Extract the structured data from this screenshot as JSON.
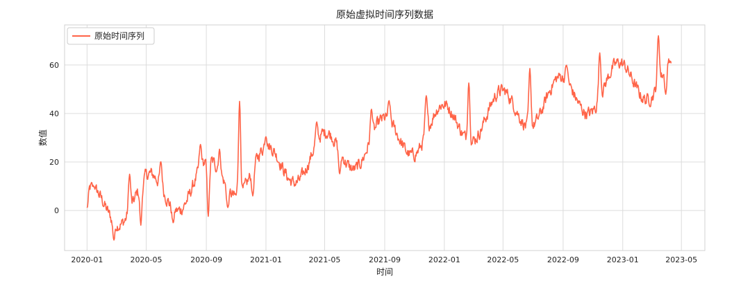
{
  "chart_data": {
    "type": "line",
    "title": "原始虚拟时间序列数据",
    "xlabel": "时间",
    "ylabel": "数值",
    "x_range": [
      "2019-11-16",
      "2023-06-18"
    ],
    "ylim": [
      -16.5,
      76.5
    ],
    "grid": true,
    "legend_position": "top-left",
    "x_ticks": [
      "2020-01",
      "2020-05",
      "2020-09",
      "2021-01",
      "2021-05",
      "2021-09",
      "2022-01",
      "2022-05",
      "2022-09",
      "2023-01",
      "2023-05"
    ],
    "y_ticks": [
      0,
      20,
      40,
      60
    ],
    "series": [
      {
        "name": "原始时间序列",
        "color": "#ff6347",
        "x_start": "2020-01-01",
        "x_end": "2023-04-10",
        "x_step": "1 day",
        "trend": {
          "start": 0,
          "end": 57
        },
        "seasonal_amplitude": 9,
        "seasonal_period_days": 120,
        "key_points": [
          {
            "x": "2020-01-01",
            "y": 1
          },
          {
            "x": "2020-01-15",
            "y": 10
          },
          {
            "x": "2020-02-25",
            "y": -12
          },
          {
            "x": "2020-03-28",
            "y": 15
          },
          {
            "x": "2020-04-20",
            "y": -6
          },
          {
            "x": "2020-05-31",
            "y": 20
          },
          {
            "x": "2020-06-25",
            "y": -5
          },
          {
            "x": "2020-08-20",
            "y": 27
          },
          {
            "x": "2020-09-05",
            "y": -2
          },
          {
            "x": "2020-09-28",
            "y": 25
          },
          {
            "x": "2020-10-15",
            "y": 1
          },
          {
            "x": "2020-11-08",
            "y": 45
          },
          {
            "x": "2020-12-05",
            "y": 6
          },
          {
            "x": "2021-01-01",
            "y": 31
          },
          {
            "x": "2021-04-15",
            "y": 36
          },
          {
            "x": "2021-06-01",
            "y": 15
          },
          {
            "x": "2021-08-05",
            "y": 42
          },
          {
            "x": "2021-09-10",
            "y": 45
          },
          {
            "x": "2021-11-25",
            "y": 47
          },
          {
            "x": "2022-02-20",
            "y": 53
          },
          {
            "x": "2022-06-25",
            "y": 58
          },
          {
            "x": "2022-09-08",
            "y": 60
          },
          {
            "x": "2022-11-15",
            "y": 65
          },
          {
            "x": "2023-03-15",
            "y": 72
          },
          {
            "x": "2023-03-30",
            "y": 48
          },
          {
            "x": "2023-04-10",
            "y": 61
          }
        ]
      }
    ]
  }
}
